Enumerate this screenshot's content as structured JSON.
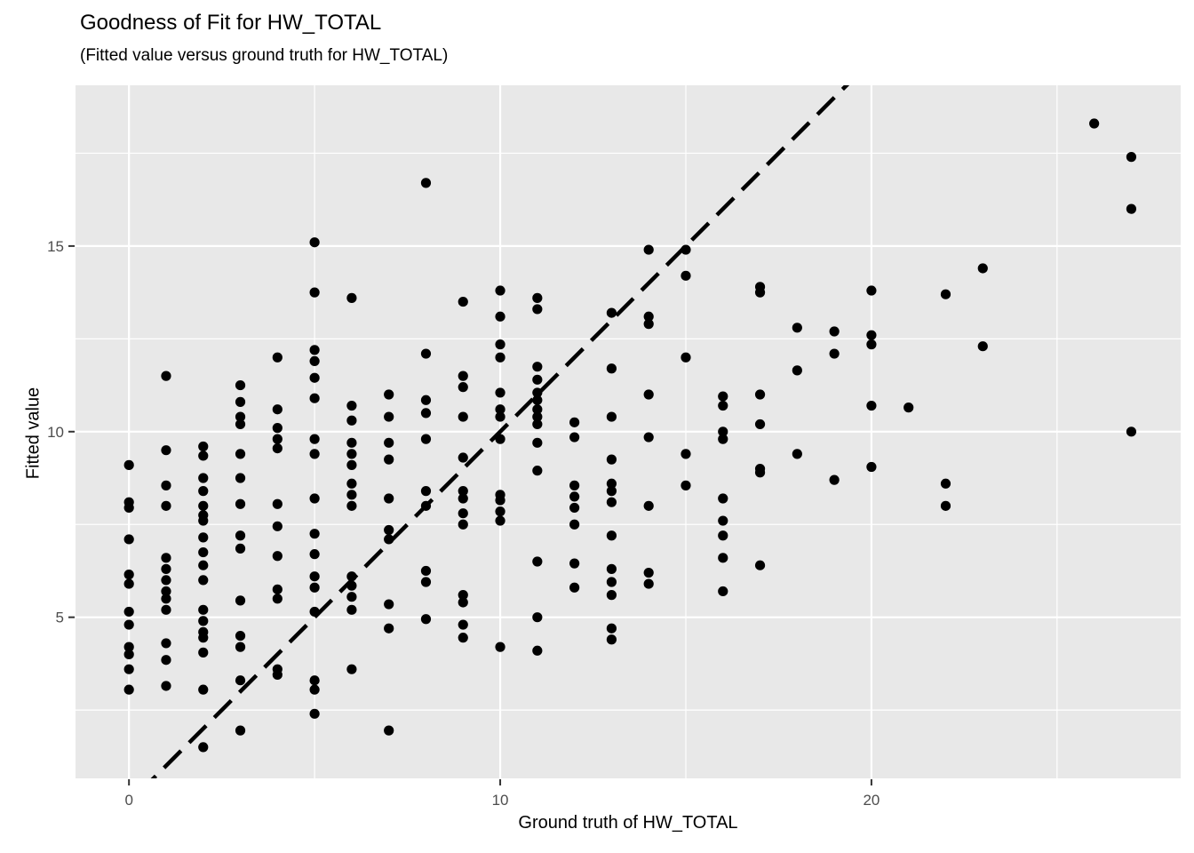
{
  "chart_data": {
    "type": "scatter",
    "title": "Goodness of Fit for HW_TOTAL",
    "subtitle": "(Fitted value versus ground truth for HW_TOTAL)",
    "xlabel": "Ground truth of HW_TOTAL",
    "ylabel": "Fitted value",
    "x_ticks": [
      0,
      10,
      20
    ],
    "x_minor_gridlines": [
      5,
      15,
      25
    ],
    "y_ticks": [
      5,
      10,
      15
    ],
    "y_minor_gridlines": [
      2.5,
      7.5,
      12.5,
      17.5
    ],
    "xlim": [
      -1.44,
      28.33
    ],
    "ylim": [
      0.66,
      19.33
    ],
    "grid": "on",
    "legend": "none",
    "identity_line": {
      "equation": "y = x",
      "style": "dashed",
      "color": "#000000"
    },
    "style": {
      "panel_bg": "#E8E8E8",
      "gridline_color": "#FFFFFF",
      "point_color": "#000000",
      "tick_mark_color": "#333333",
      "tick_label_color": "#4D4D4D",
      "text_color": "#000000"
    },
    "points": [
      [
        0,
        9.1
      ],
      [
        0,
        8.1
      ],
      [
        0,
        7.95
      ],
      [
        0,
        7.1
      ],
      [
        0,
        6.15
      ],
      [
        0,
        5.9
      ],
      [
        0,
        5.15
      ],
      [
        0,
        4.8
      ],
      [
        0,
        4.2
      ],
      [
        0,
        4.0
      ],
      [
        0,
        3.6
      ],
      [
        0,
        3.05
      ],
      [
        1,
        11.5
      ],
      [
        1,
        9.5
      ],
      [
        1,
        8.55
      ],
      [
        1,
        8.0
      ],
      [
        1,
        6.6
      ],
      [
        1,
        6.3
      ],
      [
        1,
        6.0
      ],
      [
        1,
        5.7
      ],
      [
        1,
        5.5
      ],
      [
        1,
        5.2
      ],
      [
        1,
        4.3
      ],
      [
        1,
        3.85
      ],
      [
        1,
        3.15
      ],
      [
        2,
        9.6
      ],
      [
        2,
        9.35
      ],
      [
        2,
        8.75
      ],
      [
        2,
        8.4
      ],
      [
        2,
        8.0
      ],
      [
        2,
        7.75
      ],
      [
        2,
        7.6
      ],
      [
        2,
        7.15
      ],
      [
        2,
        6.75
      ],
      [
        2,
        6.4
      ],
      [
        2,
        6.0
      ],
      [
        2,
        5.2
      ],
      [
        2,
        4.9
      ],
      [
        2,
        4.6
      ],
      [
        2,
        4.45
      ],
      [
        2,
        4.05
      ],
      [
        2,
        3.05
      ],
      [
        2,
        1.5
      ],
      [
        3,
        11.25
      ],
      [
        3,
        10.8
      ],
      [
        3,
        10.4
      ],
      [
        3,
        10.2
      ],
      [
        3,
        9.4
      ],
      [
        3,
        8.75
      ],
      [
        3,
        8.05
      ],
      [
        3,
        7.2
      ],
      [
        3,
        6.85
      ],
      [
        3,
        5.45
      ],
      [
        3,
        4.5
      ],
      [
        3,
        4.2
      ],
      [
        3,
        3.3
      ],
      [
        3,
        1.95
      ],
      [
        4,
        12.0
      ],
      [
        4,
        10.6
      ],
      [
        4,
        10.1
      ],
      [
        4,
        9.8
      ],
      [
        4,
        9.55
      ],
      [
        4,
        8.05
      ],
      [
        4,
        7.45
      ],
      [
        4,
        6.65
      ],
      [
        4,
        5.75
      ],
      [
        4,
        5.5
      ],
      [
        4,
        3.6
      ],
      [
        4,
        3.45
      ],
      [
        5,
        15.1
      ],
      [
        5,
        13.75
      ],
      [
        5,
        12.2
      ],
      [
        5,
        11.9
      ],
      [
        5,
        11.45
      ],
      [
        5,
        10.9
      ],
      [
        5,
        9.8
      ],
      [
        5,
        9.4
      ],
      [
        5,
        8.2
      ],
      [
        5,
        7.25
      ],
      [
        5,
        6.7
      ],
      [
        5,
        6.1
      ],
      [
        5,
        5.8
      ],
      [
        5,
        5.15
      ],
      [
        5,
        3.3
      ],
      [
        5,
        3.05
      ],
      [
        5,
        2.4
      ],
      [
        6,
        13.6
      ],
      [
        6,
        10.7
      ],
      [
        6,
        10.3
      ],
      [
        6,
        9.7
      ],
      [
        6,
        9.4
      ],
      [
        6,
        9.1
      ],
      [
        6,
        8.6
      ],
      [
        6,
        8.3
      ],
      [
        6,
        8.0
      ],
      [
        6,
        6.1
      ],
      [
        6,
        5.85
      ],
      [
        6,
        5.55
      ],
      [
        6,
        5.2
      ],
      [
        6,
        3.6
      ],
      [
        7,
        11.0
      ],
      [
        7,
        10.4
      ],
      [
        7,
        9.7
      ],
      [
        7,
        9.25
      ],
      [
        7,
        8.2
      ],
      [
        7,
        7.35
      ],
      [
        7,
        7.1
      ],
      [
        7,
        5.35
      ],
      [
        7,
        4.7
      ],
      [
        7,
        1.95
      ],
      [
        8,
        16.7
      ],
      [
        8,
        12.1
      ],
      [
        8,
        10.85
      ],
      [
        8,
        10.5
      ],
      [
        8,
        9.8
      ],
      [
        8,
        8.4
      ],
      [
        8,
        8.0
      ],
      [
        8,
        6.25
      ],
      [
        8,
        5.95
      ],
      [
        8,
        4.95
      ],
      [
        9,
        13.5
      ],
      [
        9,
        11.5
      ],
      [
        9,
        11.2
      ],
      [
        9,
        10.4
      ],
      [
        9,
        9.3
      ],
      [
        9,
        8.4
      ],
      [
        9,
        8.2
      ],
      [
        9,
        7.8
      ],
      [
        9,
        7.5
      ],
      [
        9,
        5.6
      ],
      [
        9,
        5.4
      ],
      [
        9,
        4.8
      ],
      [
        9,
        4.45
      ],
      [
        10,
        13.8
      ],
      [
        10,
        13.1
      ],
      [
        10,
        12.35
      ],
      [
        10,
        12.0
      ],
      [
        10,
        11.05
      ],
      [
        10,
        10.6
      ],
      [
        10,
        10.4
      ],
      [
        10,
        9.8
      ],
      [
        10,
        8.3
      ],
      [
        10,
        8.15
      ],
      [
        10,
        7.85
      ],
      [
        10,
        7.6
      ],
      [
        10,
        4.2
      ],
      [
        11,
        13.6
      ],
      [
        11,
        13.3
      ],
      [
        11,
        11.75
      ],
      [
        11,
        11.4
      ],
      [
        11,
        11.05
      ],
      [
        11,
        10.85
      ],
      [
        11,
        10.6
      ],
      [
        11,
        10.4
      ],
      [
        11,
        10.2
      ],
      [
        11,
        9.7
      ],
      [
        11,
        8.95
      ],
      [
        11,
        6.5
      ],
      [
        11,
        5.0
      ],
      [
        11,
        4.1
      ],
      [
        12,
        10.25
      ],
      [
        12,
        9.85
      ],
      [
        12,
        8.55
      ],
      [
        12,
        8.25
      ],
      [
        12,
        7.95
      ],
      [
        12,
        7.5
      ],
      [
        12,
        6.45
      ],
      [
        12,
        5.8
      ],
      [
        13,
        13.2
      ],
      [
        13,
        11.7
      ],
      [
        13,
        10.4
      ],
      [
        13,
        9.25
      ],
      [
        13,
        8.6
      ],
      [
        13,
        8.4
      ],
      [
        13,
        8.1
      ],
      [
        13,
        7.2
      ],
      [
        13,
        6.3
      ],
      [
        13,
        5.95
      ],
      [
        13,
        5.6
      ],
      [
        13,
        4.7
      ],
      [
        13,
        4.4
      ],
      [
        14,
        14.9
      ],
      [
        14,
        13.1
      ],
      [
        14,
        12.9
      ],
      [
        14,
        11.0
      ],
      [
        14,
        9.85
      ],
      [
        14,
        8.0
      ],
      [
        14,
        6.2
      ],
      [
        14,
        5.9
      ],
      [
        15,
        14.9
      ],
      [
        15,
        14.2
      ],
      [
        15,
        12.0
      ],
      [
        15,
        9.4
      ],
      [
        15,
        8.55
      ],
      [
        16,
        10.95
      ],
      [
        16,
        10.7
      ],
      [
        16,
        10.0
      ],
      [
        16,
        9.8
      ],
      [
        16,
        8.2
      ],
      [
        16,
        7.6
      ],
      [
        16,
        7.2
      ],
      [
        16,
        6.6
      ],
      [
        16,
        5.7
      ],
      [
        17,
        13.9
      ],
      [
        17,
        13.75
      ],
      [
        17,
        11.0
      ],
      [
        17,
        10.2
      ],
      [
        17,
        9.0
      ],
      [
        17,
        8.9
      ],
      [
        17,
        6.4
      ],
      [
        18,
        12.8
      ],
      [
        18,
        11.65
      ],
      [
        18,
        9.4
      ],
      [
        19,
        12.7
      ],
      [
        19,
        12.1
      ],
      [
        19,
        8.7
      ],
      [
        20,
        13.8
      ],
      [
        20,
        12.6
      ],
      [
        20,
        12.35
      ],
      [
        20,
        10.7
      ],
      [
        20,
        9.05
      ],
      [
        21,
        10.65
      ],
      [
        22,
        13.7
      ],
      [
        22,
        8.6
      ],
      [
        22,
        8.0
      ],
      [
        23,
        14.4
      ],
      [
        23,
        12.3
      ],
      [
        26,
        18.3
      ],
      [
        27,
        17.4
      ],
      [
        27,
        16.0
      ],
      [
        27,
        10.0
      ]
    ]
  }
}
